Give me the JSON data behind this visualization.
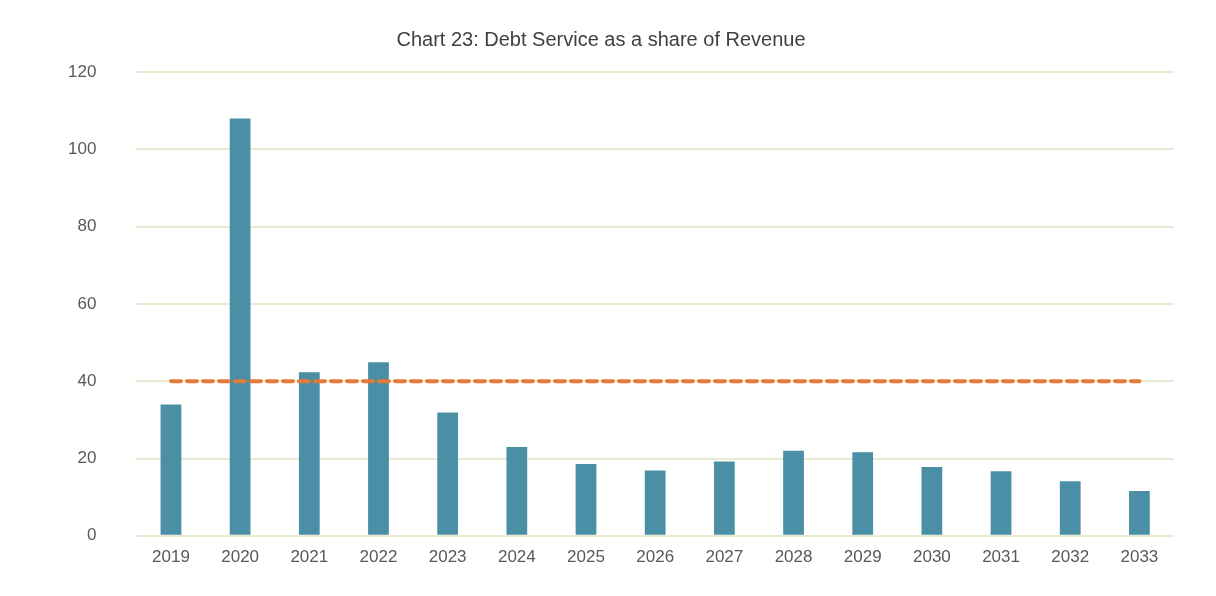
{
  "chart_data": {
    "type": "bar",
    "title": "Chart 23: Debt Service as a share of Revenue",
    "categories": [
      "2019",
      "2020",
      "2021",
      "2022",
      "2023",
      "2024",
      "2025",
      "2026",
      "2027",
      "2028",
      "2029",
      "2030",
      "2031",
      "2032",
      "2033"
    ],
    "series": [
      {
        "color": "#4a8fa6",
        "values": [
          34,
          108,
          42.3,
          44.9,
          31.9,
          23,
          18.6,
          16.9,
          19.2,
          22,
          21.6,
          17.8,
          16.7,
          14.1,
          11.6
        ]
      },
      {
        "type": "line",
        "color": "#e07b39",
        "line_style": "dashed",
        "marker": "none",
        "values": [
          40,
          40,
          40,
          40,
          40,
          40,
          40,
          40,
          40,
          40,
          40,
          40,
          40,
          40,
          40
        ]
      }
    ],
    "ylim": [
      0,
      120
    ],
    "yticks": [
      0,
      20,
      40,
      60,
      80,
      100,
      120
    ],
    "grid": "y",
    "legend": false
  }
}
